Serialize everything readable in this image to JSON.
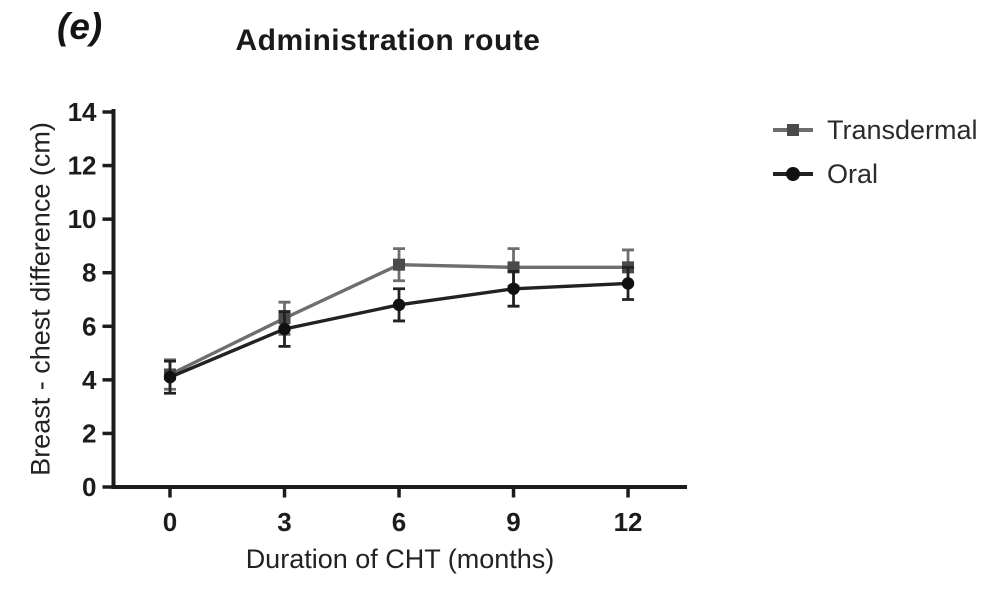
{
  "figure": {
    "panel_label": "(e)"
  },
  "chart_data": {
    "type": "line",
    "title": "Administration route",
    "xlabel": "Duration of CHT (months)",
    "ylabel": "Breast - chest difference (cm)",
    "x": [
      0,
      3,
      6,
      9,
      12
    ],
    "xticks": [
      "0",
      "3",
      "6",
      "9",
      "12"
    ],
    "yticks": [
      "0",
      "2",
      "4",
      "6",
      "8",
      "10",
      "12",
      "14"
    ],
    "ytick_values": [
      0,
      2,
      4,
      6,
      8,
      10,
      12,
      14
    ],
    "xlim": [
      -1.5,
      13.5
    ],
    "ylim": [
      0,
      14
    ],
    "grid": false,
    "legend_position": "right-outside",
    "error_bars": "sem",
    "axis_color": "#1c1c1c",
    "series": [
      {
        "name": "Transdermal",
        "marker": "square",
        "color": "#6e6e6e",
        "marker_color": "#4a4a4a",
        "values": [
          4.2,
          6.3,
          8.3,
          8.2,
          8.2
        ],
        "errors": [
          0.55,
          0.6,
          0.6,
          0.7,
          0.65
        ]
      },
      {
        "name": "Oral",
        "marker": "circle",
        "color": "#222222",
        "marker_color": "#111111",
        "values": [
          4.1,
          5.9,
          6.8,
          7.4,
          7.6
        ],
        "errors": [
          0.6,
          0.65,
          0.6,
          0.65,
          0.6
        ]
      }
    ]
  }
}
